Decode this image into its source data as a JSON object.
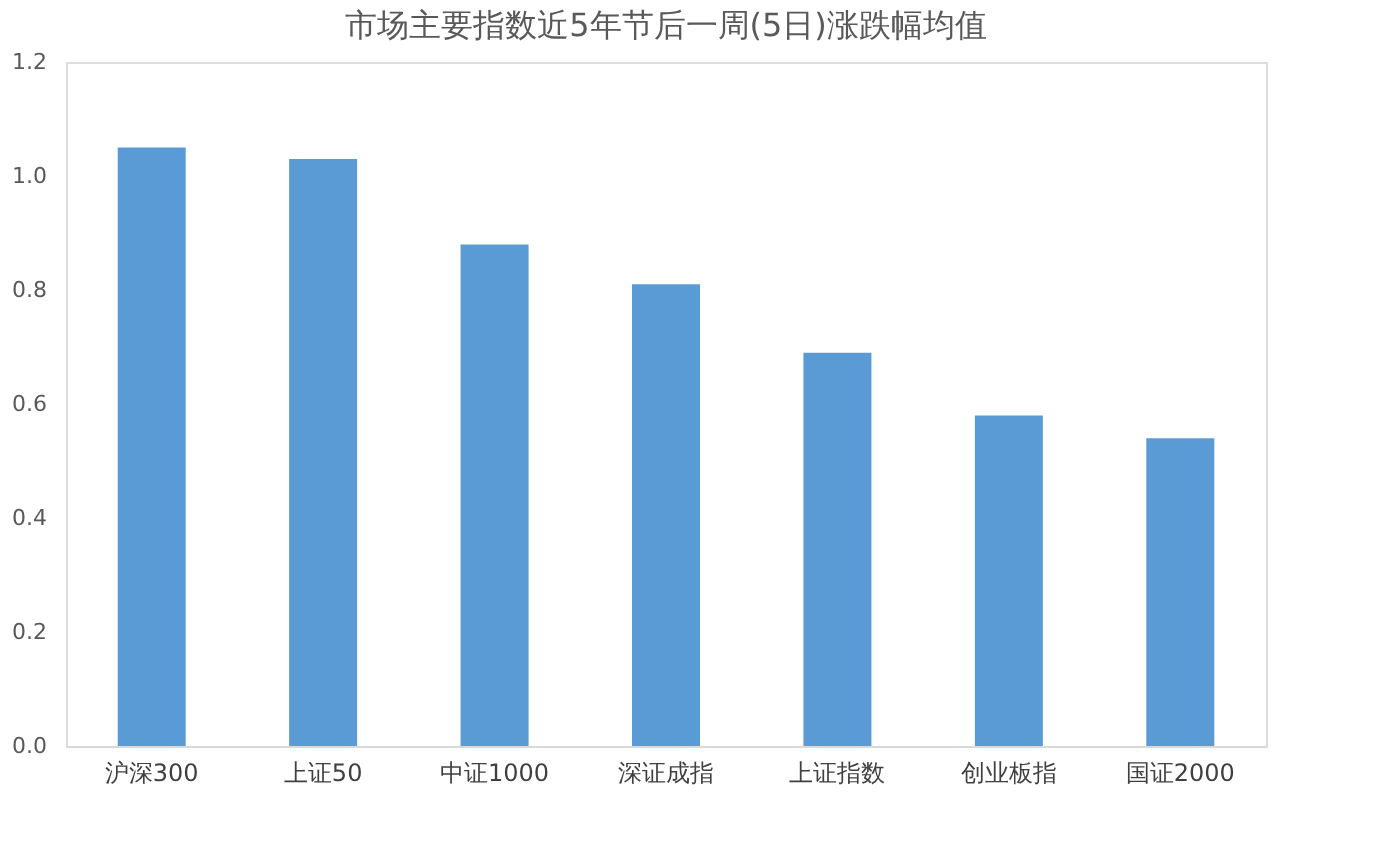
{
  "chart_data": {
    "type": "bar",
    "title": "市场主要指数近5年节后一周(5日)涨跌幅均值",
    "categories": [
      "沪深300",
      "上证50",
      "中证1000",
      "深证成指",
      "上证指数",
      "创业板指",
      "国证2000"
    ],
    "values": [
      1.05,
      1.03,
      0.88,
      0.81,
      0.69,
      0.58,
      0.54
    ],
    "color": "#5b9bd5",
    "ylim": [
      0,
      1.2
    ],
    "yticks": [
      {
        "value": 0,
        "label": "0.0"
      },
      {
        "value": 0.2,
        "label": "0.2"
      },
      {
        "value": 0.4,
        "label": "0.4"
      },
      {
        "value": 0.6,
        "label": "0.6"
      },
      {
        "value": 0.8,
        "label": "0.8"
      },
      {
        "value": 1.0,
        "label": "1.0"
      },
      {
        "value": 1.2,
        "label": "1.2"
      }
    ],
    "grid": false
  }
}
